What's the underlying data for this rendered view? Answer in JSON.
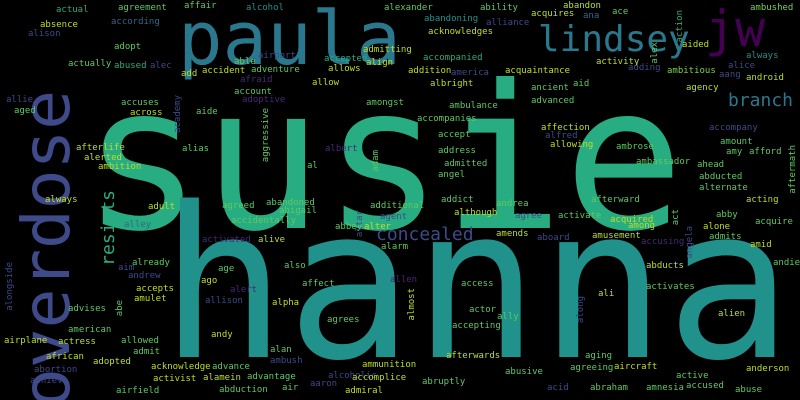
{
  "palette": {
    "background": "#000000",
    "teal": "#21918c",
    "green": "#27ad81",
    "cyan": "#2a788e",
    "blue": "#31688e",
    "indigo": "#3e4a89",
    "purple": "#482878",
    "violet": "#440154",
    "lime": "#7ad151",
    "lightgreen": "#5ec962",
    "yellow": "#bddf26"
  },
  "words": {
    "susie": "susie",
    "hanna": "hanna",
    "overdose": "overdose",
    "paula": "paula",
    "lindsey": "lindsey",
    "jw": "jw",
    "branch": "branch",
    "resists": "resists",
    "concealed": "concealed",
    "actual": "actual",
    "agreement": "agreement",
    "affair": "affair",
    "alcohol": "alcohol",
    "alexander": "alexander",
    "ability": "ability",
    "abandon": "abandon",
    "abandoning": "abandoning",
    "ana": "ana",
    "ace": "ace",
    "action": "action",
    "ambushed": "ambushed",
    "absence": "absence",
    "according": "according",
    "acquires": "acquires",
    "alliance": "alliance",
    "alison": "alison",
    "acknowledges": "acknowledges",
    "aided": "aided",
    "alex": "alex",
    "adopt": "adopt",
    "admitting": "admitting",
    "airport": "airport",
    "always": "always",
    "accompanied": "accompanied",
    "alice": "alice",
    "actually": "actually",
    "abused": "abused",
    "alec": "alec",
    "able": "able",
    "accepted": "accepted",
    "align": "align",
    "activity": "activity",
    "adding": "adding",
    "ambitious": "ambitious",
    "aang": "aang",
    "add": "add",
    "accident": "accident",
    "adventure": "adventure",
    "allows": "allows",
    "addition": "addition",
    "america": "america",
    "acquaintance": "acquaintance",
    "android": "android",
    "allow": "allow",
    "albright": "albright",
    "ancient": "ancient",
    "aid": "aid",
    "agency": "agency",
    "allie": "allie",
    "accuses": "accuses",
    "academy": "academy",
    "account": "account",
    "afraid": "afraid",
    "amongst": "amongst",
    "advanced": "advanced",
    "ambulance": "ambulance",
    "aged": "aged",
    "across": "across",
    "aide": "aide",
    "adoptive": "adoptive",
    "accompanies": "accompanies",
    "aggressive": "aggressive",
    "affection": "affection",
    "accompany": "accompany",
    "alfred": "alfred",
    "accept": "accept",
    "allowing": "allowing",
    "ambrose": "ambrose",
    "amount": "amount",
    "afterlife": "afterlife",
    "alias": "alias",
    "albert": "albert",
    "adam": "adam",
    "address": "address",
    "amy": "amy",
    "afford": "afford",
    "aftermath": "aftermath",
    "alerted": "alerted",
    "ambassador": "ambassador",
    "ahead": "ahead",
    "ambition": "ambition",
    "admitted": "admitted",
    "al": "al",
    "angel": "angel",
    "abducted": "abducted",
    "alternate": "alternate",
    "adult": "adult",
    "addict": "addict",
    "afterward": "afterward",
    "acting": "acting",
    "agreed": "agreed",
    "abandoned": "abandoned",
    "andrea": "andrea",
    "abby": "abby",
    "additional": "additional",
    "although": "although",
    "alley": "alley",
    "accidentally": "accidentally",
    "abigail": "abigail",
    "agree": "agree",
    "activate": "activate",
    "acquired": "acquired",
    "act": "act",
    "acquire": "acquire",
    "abbey": "abbey",
    "alter": "alter",
    "agent": "agent",
    "altar": "altar",
    "among": "among",
    "alone": "alone",
    "angela": "angela",
    "activated": "activated",
    "alive": "alive",
    "amends": "amends",
    "aboard": "aboard",
    "amusement": "amusement",
    "accusing": "accusing",
    "admits": "admits",
    "already": "already",
    "alarm": "alarm",
    "amid": "amid",
    "aim": "aim",
    "andrew": "andrew",
    "age": "age",
    "also": "also",
    "abducts": "abducts",
    "andie": "andie",
    "alongside": "alongside",
    "accepts": "accepts",
    "ago": "ago",
    "allen": "allen",
    "activates": "activates",
    "amulet": "amulet",
    "allison": "allison",
    "alert": "alert",
    "affect": "affect",
    "access": "access",
    "ali": "ali",
    "abe": "abe",
    "alpha": "alpha",
    "almost": "almost",
    "actor": "actor",
    "ally": "ally",
    "advises": "advises",
    "agrees": "agrees",
    "american": "american",
    "accepting": "accepting",
    "along": "along",
    "alien": "alien",
    "airplane": "airplane",
    "actress": "actress",
    "allowed": "allowed",
    "andy": "andy",
    "admit": "admit",
    "alan": "alan",
    "african": "african",
    "adopted": "adopted",
    "ambush": "ambush",
    "afterwards": "afterwards",
    "aging": "aging",
    "abortion": "abortion",
    "acknowledge": "acknowledge",
    "advance": "advance",
    "ammunition": "ammunition",
    "abusive": "abusive",
    "aircraft": "aircraft",
    "anderson": "anderson",
    "alamein": "alamein",
    "advantage": "advantage",
    "alcoholic": "alcoholic",
    "accomplice": "accomplice",
    "agreeing": "agreeing",
    "active": "active",
    "achieve": "achieve",
    "activist": "activist",
    "aaron": "aaron",
    "abruptly": "abruptly",
    "airfield": "airfield",
    "abduction": "abduction",
    "air": "air",
    "admiral": "admiral",
    "acid": "acid",
    "abraham": "abraham",
    "amnesia": "amnesia",
    "accused": "accused",
    "abuse": "abuse"
  }
}
